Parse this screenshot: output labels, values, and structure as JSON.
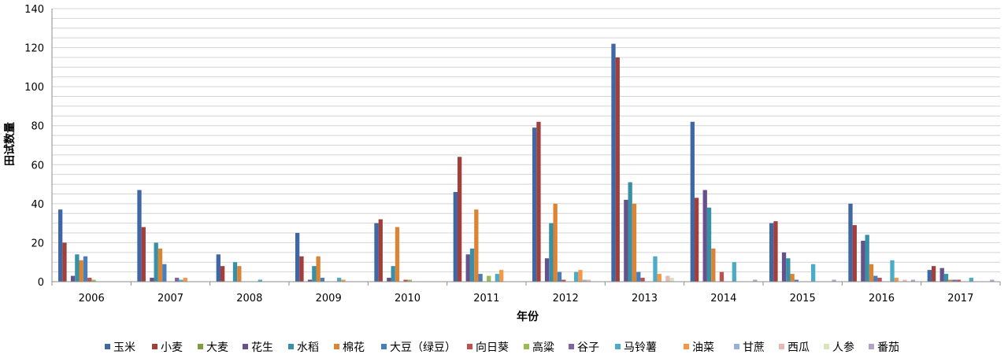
{
  "chart_data": {
    "type": "bar",
    "xlabel": "年份",
    "ylabel": "田试数量",
    "ylim": [
      0,
      140
    ],
    "yticks": [
      0,
      20,
      40,
      60,
      80,
      100,
      120,
      140
    ],
    "grid": "horizontal",
    "legend_position": "bottom",
    "categories": [
      "2006",
      "2007",
      "2008",
      "2009",
      "2010",
      "2011",
      "2012",
      "2013",
      "2014",
      "2015",
      "2016",
      "2017"
    ],
    "series": [
      {
        "name": "玉米",
        "color": "#3f67a4",
        "values": [
          37,
          47,
          14,
          25,
          30,
          46,
          79,
          122,
          82,
          30,
          40,
          6
        ]
      },
      {
        "name": "小麦",
        "color": "#a23f3b",
        "values": [
          20,
          28,
          8,
          13,
          32,
          64,
          82,
          115,
          43,
          31,
          29,
          8
        ]
      },
      {
        "name": "大麦",
        "color": "#7e9c3e",
        "values": [
          0,
          0,
          0,
          0,
          0,
          0,
          0,
          0,
          0,
          0,
          0,
          0
        ]
      },
      {
        "name": "花生",
        "color": "#66518a",
        "values": [
          3,
          2,
          0,
          1,
          2,
          14,
          12,
          42,
          47,
          15,
          21,
          7
        ]
      },
      {
        "name": "水稻",
        "color": "#3890a6",
        "values": [
          14,
          20,
          10,
          8,
          8,
          17,
          30,
          51,
          38,
          12,
          24,
          4
        ]
      },
      {
        "name": "棉花",
        "color": "#db8433",
        "values": [
          11,
          17,
          8,
          13,
          28,
          37,
          40,
          40,
          17,
          4,
          9,
          1
        ]
      },
      {
        "name": "大豆（绿豆）",
        "color": "#4a7ebb",
        "values": [
          13,
          9,
          0,
          2,
          0,
          4,
          5,
          5,
          0,
          1,
          3,
          1
        ]
      },
      {
        "name": "向日葵",
        "color": "#c0504d",
        "values": [
          2,
          0,
          0,
          0,
          1,
          0,
          1,
          2,
          5,
          0,
          2,
          1
        ]
      },
      {
        "name": "高粱",
        "color": "#9bbb59",
        "values": [
          1,
          0,
          0,
          0,
          1,
          3,
          0,
          0,
          0,
          0,
          0,
          0
        ]
      },
      {
        "name": "谷子",
        "color": "#8064a2",
        "values": [
          0,
          2,
          0,
          0,
          0,
          0,
          0,
          0,
          0,
          0,
          0,
          0
        ]
      },
      {
        "name": "马铃薯",
        "color": "#4bacc6",
        "values": [
          0,
          1,
          1,
          2,
          0,
          4,
          5,
          13,
          10,
          9,
          11,
          2
        ]
      },
      {
        "name": "油菜",
        "color": "#f79646",
        "values": [
          0,
          2,
          0,
          1,
          0,
          6,
          6,
          4,
          0,
          0,
          2,
          0
        ]
      },
      {
        "name": "甘蔗",
        "color": "#95b3d7",
        "values": [
          0,
          0,
          0,
          0,
          0,
          0,
          1,
          0,
          0,
          0,
          0,
          0
        ]
      },
      {
        "name": "西瓜",
        "color": "#e6b9b8",
        "values": [
          0,
          0,
          0,
          0,
          0,
          0,
          1,
          3,
          0,
          0,
          1,
          0
        ]
      },
      {
        "name": "人参",
        "color": "#d7e4bd",
        "values": [
          0,
          0,
          0,
          0,
          0,
          0,
          0,
          2,
          0,
          0,
          0,
          0
        ]
      },
      {
        "name": "番茄",
        "color": "#b3a2c7",
        "values": [
          0,
          0,
          0,
          0,
          0,
          0,
          0,
          0,
          1,
          1,
          1,
          1
        ]
      }
    ]
  }
}
